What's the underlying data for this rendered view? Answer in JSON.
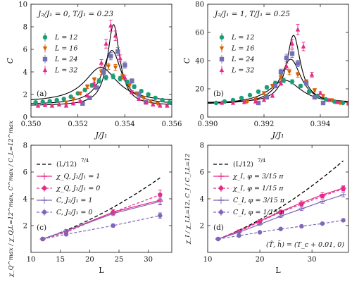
{
  "colors": {
    "green": "#1a9e77",
    "orange": "#d95f02",
    "purple": "#7570b3",
    "magenta": "#e7298a",
    "violet": "#8066b8",
    "black": "#000000"
  },
  "chart_data": [
    {
      "panel": "(a)",
      "type": "line",
      "annotation": "J₂/J₁ = 0,  T/J₁ = 0.23",
      "xlabel": "J/J₁",
      "ylabel": "C",
      "xlim": [
        0.35,
        0.356
      ],
      "ylim": [
        0,
        10
      ],
      "xticks": [
        "0.350",
        "0.352",
        "0.354",
        "0.356"
      ],
      "yticks": [
        "0",
        "2",
        "4",
        "6",
        "8",
        "10"
      ],
      "legend": "left",
      "series": [
        {
          "name": "L = 12",
          "marker": "circle",
          "color": "green",
          "x": [
            0.3502,
            0.3505,
            0.3508,
            0.3511,
            0.3514,
            0.3517,
            0.352,
            0.3523,
            0.3526,
            0.3529,
            0.3532,
            0.3535,
            0.3538,
            0.3541,
            0.3544,
            0.3547,
            0.355,
            0.3553,
            0.3556,
            0.3559
          ],
          "y": [
            1.3,
            1.35,
            1.4,
            1.5,
            1.6,
            1.8,
            2.1,
            2.4,
            2.8,
            3.2,
            3.5,
            3.6,
            3.4,
            3.1,
            2.7,
            2.3,
            2.0,
            1.7,
            1.5,
            1.3
          ]
        },
        {
          "name": "L = 16",
          "marker": "triangle-down",
          "color": "orange",
          "x": [
            0.3515,
            0.3518,
            0.3521,
            0.3524,
            0.3527,
            0.353,
            0.3533,
            0.3536,
            0.3539,
            0.3542,
            0.3545,
            0.3548,
            0.3551,
            0.3554
          ],
          "y": [
            1.3,
            1.6,
            2.1,
            2.7,
            3.3,
            4.0,
            4.5,
            4.4,
            3.6,
            2.8,
            2.1,
            1.7,
            1.4,
            1.2
          ]
        },
        {
          "name": "L = 24",
          "marker": "square",
          "color": "purple",
          "x": [
            0.3522,
            0.3525,
            0.3528,
            0.3531,
            0.3534,
            0.3537,
            0.354,
            0.3543,
            0.3546,
            0.3549
          ],
          "y": [
            1.2,
            1.7,
            2.6,
            4.0,
            5.4,
            5.8,
            4.6,
            3.2,
            2.0,
            1.3
          ]
        },
        {
          "name": "L = 32",
          "marker": "triangle-up",
          "color": "magenta",
          "x": [
            0.3503,
            0.3506,
            0.3509,
            0.3512,
            0.3515,
            0.3518,
            0.3521,
            0.3524,
            0.3527,
            0.353,
            0.3532,
            0.3534,
            0.3536,
            0.3538,
            0.354,
            0.3543,
            0.3546,
            0.3549,
            0.3552,
            0.3555,
            0.3558
          ],
          "y": [
            1.0,
            1.05,
            1.0,
            1.1,
            1.0,
            1.2,
            1.4,
            1.9,
            2.9,
            4.8,
            6.5,
            8.1,
            7.2,
            5.2,
            3.5,
            2.2,
            1.6,
            1.3,
            1.1,
            1.0,
            1.0
          ]
        }
      ],
      "fits": [
        {
          "center": 0.35298,
          "height": 3.1,
          "width": 0.00085,
          "base": 1.3
        },
        {
          "center": 0.35345,
          "height": 4.8,
          "width": 0.0005,
          "base": 1.1
        },
        {
          "center": 0.35352,
          "height": 7.2,
          "width": 0.00032,
          "base": 1.0
        }
      ]
    },
    {
      "panel": "(b)",
      "type": "line",
      "annotation": "J₂/J₁ = 1,  T/J₁ = 0.25",
      "xlabel": "J/J₁",
      "ylabel": "C",
      "xlim": [
        0.39,
        0.395
      ],
      "ylim": [
        0,
        80
      ],
      "xticks": [
        "0.390",
        "0.392",
        "0.394"
      ],
      "yticks": [
        "0",
        "20",
        "40",
        "60",
        "80"
      ],
      "legend": "left",
      "series": [
        {
          "name": "L = 12",
          "marker": "circle",
          "color": "green",
          "x": [
            0.3903,
            0.3906,
            0.3909,
            0.3912,
            0.3915,
            0.3918,
            0.3921,
            0.3924,
            0.3927,
            0.393,
            0.3933,
            0.3936,
            0.3939,
            0.3942,
            0.3945,
            0.3948
          ],
          "y": [
            10,
            11,
            12,
            13.5,
            15.5,
            18,
            21,
            24,
            26,
            25,
            22,
            18,
            15,
            12.5,
            11,
            10
          ]
        },
        {
          "name": "L = 16",
          "marker": "triangle-down",
          "color": "orange",
          "x": [
            0.3914,
            0.3917,
            0.392,
            0.3923,
            0.3926,
            0.3929,
            0.3932,
            0.3935,
            0.3938,
            0.3941,
            0.3944,
            0.3947,
            0.395
          ],
          "y": [
            11,
            13,
            17,
            22,
            28,
            32,
            30,
            25,
            19,
            15,
            12,
            10,
            9
          ]
        },
        {
          "name": "L = 24",
          "marker": "square",
          "color": "purple",
          "x": [
            0.3918,
            0.3921,
            0.3924,
            0.3926,
            0.3928,
            0.393,
            0.3932,
            0.3935,
            0.3938,
            0.3941
          ],
          "y": [
            10,
            14,
            22,
            32,
            42,
            45,
            38,
            24,
            14,
            10
          ]
        },
        {
          "name": "L = 32",
          "marker": "triangle-up",
          "color": "magenta",
          "x": [
            0.3905,
            0.3909,
            0.3913,
            0.3917,
            0.392,
            0.3923,
            0.3926,
            0.3928,
            0.393,
            0.3932,
            0.3934,
            0.3937,
            0.394,
            0.3943,
            0.3946,
            0.395
          ],
          "y": [
            10,
            10,
            10.5,
            11,
            12,
            15,
            24,
            36,
            52,
            62,
            50,
            30,
            17,
            12,
            10.5,
            10
          ]
        }
      ],
      "fits": [
        {
          "center": 0.39275,
          "height": 17,
          "width": 0.0007,
          "base": 9
        },
        {
          "center": 0.39295,
          "height": 32,
          "width": 0.00045,
          "base": 9
        },
        {
          "center": 0.39305,
          "height": 48,
          "width": 0.0003,
          "base": 10
        }
      ]
    },
    {
      "panel": "(c)",
      "type": "line",
      "xlabel": "L",
      "ylabel": "χ_Q^max / χ_Q,L=12^max,  C^max / C_L=12^max",
      "xlim": [
        10,
        34
      ],
      "ylim": [
        0,
        8
      ],
      "xticks": [
        "10",
        "15",
        "20",
        "25",
        "30"
      ],
      "yticks": [
        "2",
        "4",
        "6",
        "8"
      ],
      "legend": "top-left",
      "ref_curve": {
        "name": "(L/12)^{7/4}",
        "exponent": 1.75
      },
      "series": [
        {
          "name": "χ_Q,  J₂/J₁ = 1",
          "marker": "tick",
          "dash": false,
          "color": "magenta",
          "x": [
            12,
            16,
            24,
            32
          ],
          "y": [
            1.0,
            1.6,
            3.0,
            3.9
          ],
          "err": [
            0.12,
            0.12,
            0.18,
            0.3
          ]
        },
        {
          "name": "χ_Q,  J₂/J₁ = 0",
          "marker": "circle",
          "dash": true,
          "color": "magenta",
          "x": [
            12,
            16,
            24,
            32
          ],
          "y": [
            1.0,
            1.5,
            3.0,
            4.3
          ],
          "err": [
            0.12,
            0.12,
            0.18,
            0.35
          ]
        },
        {
          "name": "C,  J₂/J₁ = 1",
          "marker": "tick",
          "dash": false,
          "color": "violet",
          "x": [
            12,
            16,
            24,
            32
          ],
          "y": [
            1.0,
            1.6,
            2.9,
            3.8
          ],
          "err": [
            0.1,
            0.1,
            0.15,
            0.25
          ]
        },
        {
          "name": "C,  J₂/J₁ = 0",
          "marker": "circle",
          "dash": true,
          "color": "violet",
          "x": [
            12,
            16,
            24,
            32
          ],
          "y": [
            1.0,
            1.35,
            2.0,
            2.75
          ],
          "err": [
            0.1,
            0.1,
            0.12,
            0.2
          ]
        }
      ]
    },
    {
      "panel": "(d)",
      "type": "line",
      "xlabel": "L",
      "ylabel": "χ_I / χ_I,L=12,  C_I / C_I,L=12",
      "note": "(T̃, h̃) = (T_c + 0.01, 0)",
      "xlim": [
        10,
        37
      ],
      "ylim": [
        0,
        8
      ],
      "xticks": [
        "10",
        "20",
        "30"
      ],
      "yticks": [
        "2",
        "4",
        "6",
        "8"
      ],
      "legend": "top-left",
      "ref_curve": {
        "name": "(L/12)^{7/4}",
        "exponent": 1.75
      },
      "series": [
        {
          "name": "χ_I,  φ = 3/15 π",
          "marker": "tick",
          "dash": false,
          "color": "magenta",
          "x": [
            12,
            16,
            20,
            24,
            28,
            32,
            36
          ],
          "y": [
            1.0,
            1.6,
            2.35,
            3.05,
            3.7,
            4.3,
            4.8
          ],
          "err": [
            0.05,
            0.08,
            0.1,
            0.12,
            0.14,
            0.15,
            0.17
          ]
        },
        {
          "name": "χ_I,  φ = 1/15 π",
          "marker": "circle",
          "dash": true,
          "color": "magenta",
          "x": [
            12,
            16,
            20,
            24,
            28,
            32,
            36
          ],
          "y": [
            1.0,
            1.55,
            2.3,
            3.0,
            3.6,
            4.2,
            4.75
          ],
          "err": [
            0.05,
            0.08,
            0.1,
            0.12,
            0.14,
            0.15,
            0.17
          ]
        },
        {
          "name": "C_I,  φ = 3/15 π",
          "marker": "tick",
          "dash": false,
          "color": "violet",
          "x": [
            12,
            16,
            20,
            24,
            28,
            32,
            36
          ],
          "y": [
            1.0,
            1.5,
            2.1,
            2.7,
            3.25,
            3.8,
            4.3
          ],
          "err": [
            0.05,
            0.07,
            0.09,
            0.1,
            0.12,
            0.13,
            0.15
          ]
        },
        {
          "name": "C_I,  φ = 1/15 π",
          "marker": "circle",
          "dash": true,
          "color": "violet",
          "x": [
            12,
            16,
            20,
            24,
            28,
            32,
            36
          ],
          "y": [
            1.0,
            1.25,
            1.5,
            1.75,
            1.95,
            2.15,
            2.4
          ],
          "err": [
            0.04,
            0.05,
            0.06,
            0.06,
            0.07,
            0.08,
            0.08
          ]
        }
      ]
    }
  ]
}
